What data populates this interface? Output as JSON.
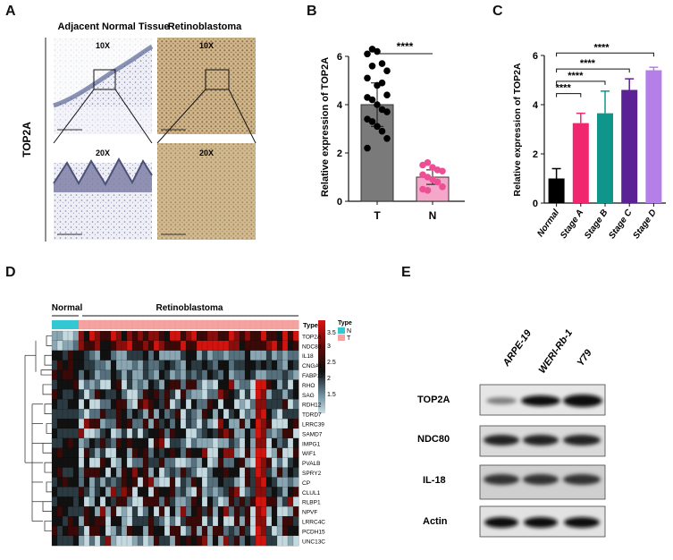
{
  "panels": {
    "a": "A",
    "b": "B",
    "c": "C",
    "d": "D",
    "e": "E"
  },
  "panel_a": {
    "row_label": "TOP2A",
    "col_normal": "Adjacent Normal Tissue",
    "col_rb": "Retinoblastoma",
    "mag_10x": "10X",
    "mag_20x": "20X"
  },
  "chart_data": [
    {
      "id": "B",
      "type": "bar",
      "ylabel": "Relative expression of TOP2A",
      "xlabel": "",
      "ylim": [
        0,
        6
      ],
      "yticks": [
        "0",
        "2",
        "4",
        "6"
      ],
      "categories": [
        "T",
        "N"
      ],
      "values": [
        4.0,
        1.0
      ],
      "errors": [
        0.9,
        0.3
      ],
      "colors": [
        "#7a7a7a",
        "#f4a7c8"
      ],
      "point_colors": [
        "#000000",
        "#ec4f94"
      ],
      "points": [
        [
          6.1,
          6.3,
          6.2,
          5.7,
          5.4,
          5.1,
          5.6,
          4.8,
          4.9,
          4.4,
          4.3,
          4.2,
          4.0,
          3.8,
          3.7,
          3.4,
          3.3,
          3.1,
          2.9,
          2.6,
          2.2
        ],
        [
          1.5,
          1.6,
          1.4,
          1.3,
          1.25,
          1.1,
          1.0,
          0.9,
          0.8,
          0.6,
          0.5,
          0.45
        ]
      ],
      "significance": "****"
    },
    {
      "id": "C",
      "type": "bar",
      "ylabel": "Relative expression of TOP2A",
      "xlabel": "",
      "ylim": [
        0,
        6
      ],
      "yticks": [
        "0",
        "2",
        "4",
        "6"
      ],
      "categories": [
        "Normal",
        "Stage A",
        "Stage B",
        "Stage C",
        "Stage D"
      ],
      "values": [
        1.0,
        3.25,
        3.65,
        4.6,
        5.4
      ],
      "errors": [
        0.4,
        0.4,
        0.9,
        0.45,
        0.12
      ],
      "colors": [
        "#000000",
        "#f0266e",
        "#0f958a",
        "#5a2295",
        "#b57fe8"
      ],
      "significance": [
        "****",
        "****",
        "****",
        "****"
      ]
    }
  ],
  "panel_d": {
    "group_normal": "Normal",
    "group_rb": "Retinoblastoma",
    "type_label": "Type",
    "legend_title": "Type",
    "legend_n": "N",
    "legend_t": "T",
    "scale_values": [
      "3.5",
      "3",
      "2.5",
      "2",
      "1.5"
    ],
    "genes": [
      "TOP2A",
      "NDC80",
      "IL18",
      "CNGA1",
      "FABP12",
      "RHO",
      "SAG",
      "RDH12",
      "TDRD7",
      "LRRC39",
      "SAMD7",
      "IMPG1",
      "WIF1",
      "PVALB",
      "SPRY2",
      "CP",
      "CLUL1",
      "RLBP1",
      "NPVF",
      "LRRC4C",
      "PCDH15",
      "UNC13C"
    ],
    "colors": {
      "normal": "#33c6d3",
      "tumor": "#f4a3a1"
    }
  },
  "panel_e": {
    "lanes": [
      "ARPE-19",
      "WERI-Rb-1",
      "Y79"
    ],
    "bands": [
      "TOP2A",
      "NDC80",
      "IL-18",
      "Actin"
    ]
  }
}
